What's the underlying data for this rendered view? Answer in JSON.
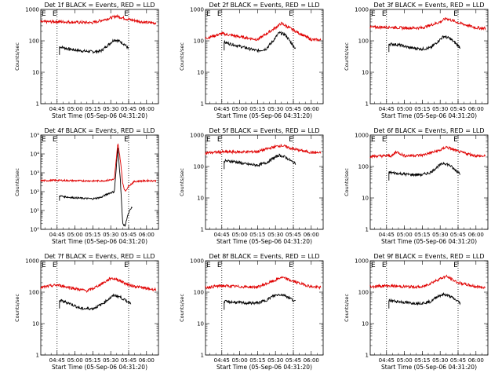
{
  "figure": {
    "ylabel": "Counts/sec",
    "xlabel": "Start Time (05-Sep-06 04:31:20)",
    "x_tick_labels": [
      "04:45",
      "05:00",
      "05:15",
      "05:30",
      "05:45",
      "06:00"
    ],
    "y_tick_labels_linear_style": [
      "1",
      "10",
      "100",
      "1000"
    ],
    "y_tick_labels_exp_style": [
      "10⁰",
      "10¹",
      "10²",
      "10³",
      "10⁴",
      "10⁵"
    ],
    "marker_start": "E",
    "marker_end": "E"
  },
  "chart_data": [
    {
      "type": "line",
      "title": "Det 1f BLACK = Events, RED = LLD",
      "xlim": [
        "04:31:20",
        "06:10"
      ],
      "ylim": [
        1,
        1000
      ],
      "yscale": "log",
      "dotted_vlines": [
        "04:45",
        "05:45"
      ],
      "series": [
        {
          "color": "#000000",
          "x": [
            "04:47",
            "04:55",
            "05:05",
            "05:15",
            "05:22",
            "05:28",
            "05:33",
            "05:38",
            "05:42",
            "05:45"
          ],
          "values": [
            65,
            55,
            48,
            45,
            48,
            75,
            110,
            95,
            75,
            55
          ]
        },
        {
          "color": "#e00000",
          "x": [
            "04:31",
            "04:45",
            "05:00",
            "05:15",
            "05:30",
            "05:35",
            "05:45",
            "06:00",
            "06:08"
          ],
          "values": [
            400,
            410,
            390,
            380,
            540,
            610,
            480,
            380,
            370
          ]
        }
      ]
    },
    {
      "type": "line",
      "title": "Det 2f BLACK = Events, RED = LLD",
      "xlim": [
        "04:31:20",
        "06:10"
      ],
      "ylim": [
        1,
        1000
      ],
      "yscale": "log",
      "dotted_vlines": [
        "04:45",
        "05:45"
      ],
      "series": [
        {
          "color": "#000000",
          "x": [
            "04:47",
            "04:55",
            "05:05",
            "05:15",
            "05:22",
            "05:28",
            "05:33",
            "05:38",
            "05:42",
            "05:47"
          ],
          "values": [
            90,
            75,
            60,
            48,
            55,
            100,
            180,
            160,
            100,
            55
          ]
        },
        {
          "color": "#e00000",
          "x": [
            "04:31",
            "04:45",
            "05:00",
            "05:15",
            "05:30",
            "05:35",
            "05:45",
            "06:00",
            "06:08"
          ],
          "values": [
            120,
            170,
            135,
            110,
            260,
            360,
            220,
            110,
            105
          ]
        }
      ]
    },
    {
      "type": "line",
      "title": "Det 3f BLACK = Events, RED = LLD",
      "xlim": [
        "04:31:20",
        "06:10"
      ],
      "ylim": [
        1,
        1000
      ],
      "yscale": "log",
      "dotted_vlines": [
        "04:45",
        "05:45"
      ],
      "series": [
        {
          "color": "#000000",
          "x": [
            "04:47",
            "04:55",
            "05:05",
            "05:15",
            "05:22",
            "05:28",
            "05:33",
            "05:38",
            "05:42",
            "05:47"
          ],
          "values": [
            80,
            75,
            60,
            55,
            60,
            95,
            140,
            120,
            90,
            60
          ]
        },
        {
          "color": "#e00000",
          "x": [
            "04:31",
            "04:45",
            "05:00",
            "05:15",
            "05:30",
            "05:35",
            "05:45",
            "06:00",
            "06:08"
          ],
          "values": [
            270,
            275,
            255,
            260,
            400,
            520,
            380,
            260,
            250
          ]
        }
      ]
    },
    {
      "type": "line",
      "title": "Det 4f BLACK = Events, RED = LLD",
      "xlim": [
        "04:31:20",
        "06:10"
      ],
      "ylim": [
        1,
        100000
      ],
      "yscale": "log",
      "dotted_vlines": [
        "04:45",
        "05:45"
      ],
      "series": [
        {
          "color": "#000000",
          "x": [
            "04:47",
            "04:55",
            "05:05",
            "05:15",
            "05:22",
            "05:28",
            "05:33",
            "05:36",
            "05:38",
            "05:40",
            "05:42",
            "05:44",
            "05:46",
            "05:48"
          ],
          "values": [
            60,
            50,
            45,
            42,
            50,
            80,
            100,
            20000,
            500,
            2,
            1.5,
            5,
            10,
            15
          ]
        },
        {
          "color": "#e00000",
          "x": [
            "04:31",
            "04:45",
            "05:00",
            "05:15",
            "05:25",
            "05:33",
            "05:36",
            "05:38",
            "05:40",
            "05:42",
            "05:45",
            "05:50",
            "06:00",
            "06:08"
          ],
          "values": [
            380,
            400,
            380,
            370,
            380,
            450,
            40000,
            5000,
            300,
            100,
            200,
            350,
            380,
            380
          ]
        }
      ]
    },
    {
      "type": "line",
      "title": "Det 5f BLACK = Events, RED = LLD",
      "xlim": [
        "04:31:20",
        "06:10"
      ],
      "ylim": [
        1,
        1000
      ],
      "yscale": "log",
      "dotted_vlines": [
        "04:45",
        "05:45"
      ],
      "series": [
        {
          "color": "#000000",
          "x": [
            "04:47",
            "04:55",
            "05:05",
            "05:15",
            "05:22",
            "05:28",
            "05:33",
            "05:38",
            "05:42",
            "05:47"
          ],
          "values": [
            150,
            145,
            120,
            110,
            130,
            180,
            230,
            200,
            160,
            120
          ]
        },
        {
          "color": "#e00000",
          "x": [
            "04:31",
            "04:45",
            "05:00",
            "05:15",
            "05:30",
            "05:35",
            "05:45",
            "06:00",
            "06:08"
          ],
          "values": [
            270,
            290,
            290,
            300,
            430,
            470,
            360,
            280,
            270
          ]
        }
      ]
    },
    {
      "type": "line",
      "title": "Det 6f BLACK = Events, RED = LLD",
      "xlim": [
        "04:31:20",
        "06:10"
      ],
      "ylim": [
        1,
        1000
      ],
      "yscale": "log",
      "dotted_vlines": [
        "04:45",
        "05:45"
      ],
      "series": [
        {
          "color": "#000000",
          "x": [
            "04:47",
            "04:55",
            "05:05",
            "05:15",
            "05:22",
            "05:28",
            "05:33",
            "05:38",
            "05:42",
            "05:47"
          ],
          "values": [
            65,
            60,
            55,
            55,
            65,
            100,
            130,
            110,
            80,
            60
          ]
        },
        {
          "color": "#e00000",
          "x": [
            "04:31",
            "04:45",
            "04:50",
            "04:53",
            "05:00",
            "05:15",
            "05:30",
            "05:35",
            "05:45",
            "06:00",
            "06:08"
          ],
          "values": [
            210,
            220,
            220,
            300,
            220,
            230,
            330,
            420,
            300,
            220,
            210
          ]
        }
      ]
    },
    {
      "type": "line",
      "title": "Det 7f BLACK = Events, RED = LLD",
      "xlim": [
        "04:31:20",
        "06:10"
      ],
      "ylim": [
        1,
        1000
      ],
      "yscale": "log",
      "dotted_vlines": [
        "04:45",
        "05:45"
      ],
      "series": [
        {
          "color": "#000000",
          "x": [
            "04:47",
            "04:55",
            "05:05",
            "05:15",
            "05:22",
            "05:28",
            "05:33",
            "05:38",
            "05:42",
            "05:47"
          ],
          "values": [
            55,
            45,
            30,
            30,
            40,
            60,
            80,
            70,
            55,
            45
          ]
        },
        {
          "color": "#e00000",
          "x": [
            "04:31",
            "04:45",
            "05:00",
            "05:10",
            "05:15",
            "05:25",
            "05:30",
            "05:35",
            "05:45",
            "06:00",
            "06:08"
          ],
          "values": [
            140,
            170,
            130,
            110,
            130,
            210,
            280,
            260,
            170,
            130,
            120
          ]
        }
      ]
    },
    {
      "type": "line",
      "title": "Det 8f BLACK = Events, RED = LLD",
      "xlim": [
        "04:31:20",
        "06:10"
      ],
      "ylim": [
        1,
        1000
      ],
      "yscale": "log",
      "dotted_vlines": [
        "04:45",
        "05:45"
      ],
      "series": [
        {
          "color": "#000000",
          "x": [
            "04:47",
            "04:55",
            "05:05",
            "05:15",
            "05:22",
            "05:28",
            "05:33",
            "05:38",
            "05:42",
            "05:47"
          ],
          "values": [
            50,
            48,
            45,
            45,
            55,
            75,
            85,
            80,
            65,
            50
          ]
        },
        {
          "color": "#e00000",
          "x": [
            "04:31",
            "04:45",
            "05:00",
            "05:15",
            "05:30",
            "05:35",
            "05:45",
            "06:00",
            "06:08"
          ],
          "values": [
            140,
            160,
            150,
            145,
            240,
            300,
            220,
            150,
            140
          ]
        }
      ]
    },
    {
      "type": "line",
      "title": "Det 9f BLACK = Events, RED = LLD",
      "xlim": [
        "04:31:20",
        "06:10"
      ],
      "ylim": [
        1,
        1000
      ],
      "yscale": "log",
      "dotted_vlines": [
        "04:45",
        "05:45"
      ],
      "series": [
        {
          "color": "#000000",
          "x": [
            "04:47",
            "04:55",
            "05:05",
            "05:15",
            "05:22",
            "05:28",
            "05:33",
            "05:38",
            "05:42",
            "05:47"
          ],
          "values": [
            55,
            50,
            45,
            45,
            50,
            75,
            85,
            75,
            60,
            45
          ]
        },
        {
          "color": "#e00000",
          "x": [
            "04:31",
            "04:45",
            "05:00",
            "05:15",
            "05:30",
            "05:35",
            "05:45",
            "06:00",
            "06:08"
          ],
          "values": [
            150,
            160,
            150,
            145,
            270,
            320,
            200,
            150,
            140
          ]
        }
      ]
    }
  ]
}
